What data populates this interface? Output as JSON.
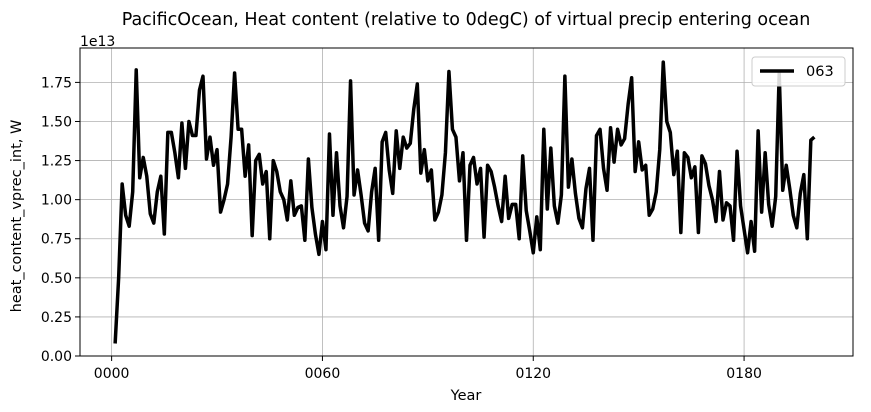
{
  "chart_data": {
    "type": "line",
    "title": "PacificOcean, Heat content (relative to 0degC) of virtual precip entering ocean",
    "xlabel": "Year",
    "ylabel": "heat_content_vprec_int, W",
    "y_offset_text": "1e13",
    "y_multiplier": 10000000000000.0,
    "xlim": [
      -9,
      211
    ],
    "ylim": [
      0,
      1.97
    ],
    "x_ticks": [
      0,
      60,
      120,
      180
    ],
    "x_tick_labels": [
      "0000",
      "0060",
      "0120",
      "0180"
    ],
    "y_ticks": [
      0,
      0.25,
      0.5,
      0.75,
      1.0,
      1.25,
      1.5,
      1.75
    ],
    "y_tick_labels": [
      "0.00",
      "0.25",
      "0.50",
      "0.75",
      "1.00",
      "1.25",
      "1.50",
      "1.75"
    ],
    "grid": true,
    "legend_position": "top-right",
    "series": [
      {
        "name": "063",
        "color": "#000000",
        "x": [
          1,
          2,
          3,
          4,
          5,
          6,
          7,
          8,
          9,
          10,
          11,
          12,
          13,
          14,
          15,
          16,
          17,
          18,
          19,
          20,
          21,
          22,
          23,
          24,
          25,
          26,
          27,
          28,
          29,
          30,
          31,
          32,
          33,
          34,
          35,
          36,
          37,
          38,
          39,
          40,
          41,
          42,
          43,
          44,
          45,
          46,
          47,
          48,
          49,
          50,
          51,
          52,
          53,
          54,
          55,
          56,
          57,
          58,
          59,
          60,
          61,
          62,
          63,
          64,
          65,
          66,
          67,
          68,
          69,
          70,
          71,
          72,
          73,
          74,
          75,
          76,
          77,
          78,
          79,
          80,
          81,
          82,
          83,
          84,
          85,
          86,
          87,
          88,
          89,
          90,
          91,
          92,
          93,
          94,
          95,
          96,
          97,
          98,
          99,
          100,
          101,
          102,
          103,
          104,
          105,
          106,
          107,
          108,
          109,
          110,
          111,
          112,
          113,
          114,
          115,
          116,
          117,
          118,
          119,
          120,
          121,
          122,
          123,
          124,
          125,
          126,
          127,
          128,
          129,
          130,
          131,
          132,
          133,
          134,
          135,
          136,
          137,
          138,
          139,
          140,
          141,
          142,
          143,
          144,
          145,
          146,
          147,
          148,
          149,
          150,
          151,
          152,
          153,
          154,
          155,
          156,
          157,
          158,
          159,
          160,
          161,
          162,
          163,
          164,
          165,
          166,
          167,
          168,
          169,
          170,
          171,
          172,
          173,
          174,
          175,
          176,
          177,
          178,
          179,
          180,
          181,
          182,
          183,
          184,
          185,
          186,
          187,
          188,
          189,
          190,
          191,
          192,
          193,
          194,
          195,
          196,
          197,
          198,
          199,
          200
        ],
        "values": [
          0.08,
          0.5,
          1.1,
          0.9,
          0.83,
          1.05,
          1.83,
          1.14,
          1.27,
          1.15,
          0.91,
          0.85,
          1.05,
          1.15,
          0.78,
          1.43,
          1.43,
          1.3,
          1.14,
          1.49,
          1.2,
          1.5,
          1.41,
          1.41,
          1.7,
          1.79,
          1.26,
          1.4,
          1.22,
          1.32,
          0.92,
          1.0,
          1.1,
          1.4,
          1.81,
          1.45,
          1.45,
          1.15,
          1.35,
          0.77,
          1.25,
          1.29,
          1.1,
          1.18,
          0.75,
          1.25,
          1.18,
          1.05,
          1.0,
          0.87,
          1.12,
          0.9,
          0.95,
          0.96,
          0.74,
          1.26,
          0.95,
          0.78,
          0.65,
          0.86,
          0.68,
          1.42,
          0.9,
          1.3,
          0.96,
          0.82,
          1.02,
          1.76,
          1.03,
          1.19,
          1.03,
          0.85,
          0.8,
          1.05,
          1.2,
          0.74,
          1.37,
          1.43,
          1.19,
          1.04,
          1.44,
          1.2,
          1.4,
          1.33,
          1.36,
          1.58,
          1.74,
          1.17,
          1.32,
          1.12,
          1.19,
          0.87,
          0.92,
          1.03,
          1.3,
          1.82,
          1.45,
          1.4,
          1.12,
          1.3,
          0.74,
          1.22,
          1.27,
          1.1,
          1.2,
          0.76,
          1.22,
          1.18,
          1.08,
          0.96,
          0.86,
          1.15,
          0.88,
          0.97,
          0.97,
          0.75,
          1.28,
          0.93,
          0.8,
          0.66,
          0.89,
          0.68,
          1.45,
          0.94,
          1.33,
          0.96,
          0.85,
          1.03,
          1.79,
          1.08,
          1.26,
          1.04,
          0.88,
          0.82,
          1.07,
          1.2,
          0.74,
          1.41,
          1.45,
          1.2,
          1.06,
          1.46,
          1.24,
          1.45,
          1.35,
          1.39,
          1.61,
          1.78,
          1.18,
          1.37,
          1.19,
          1.22,
          0.9,
          0.94,
          1.05,
          1.32,
          1.88,
          1.5,
          1.43,
          1.16,
          1.31,
          0.79,
          1.3,
          1.27,
          1.14,
          1.21,
          0.79,
          1.28,
          1.23,
          1.09,
          1.0,
          0.86,
          1.18,
          0.87,
          0.98,
          0.96,
          0.74,
          1.31,
          0.96,
          0.81,
          0.66,
          0.86,
          0.67,
          1.44,
          0.92,
          1.3,
          0.97,
          0.83,
          1.02,
          1.81,
          1.06,
          1.22,
          1.07,
          0.9,
          0.82,
          1.04,
          1.16,
          0.75,
          1.38,
          1.4
        ]
      }
    ]
  }
}
